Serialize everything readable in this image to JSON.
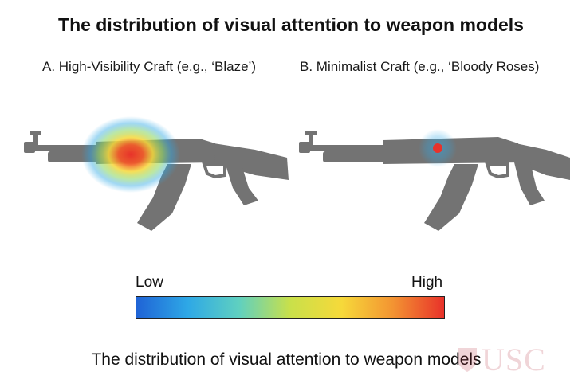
{
  "title": "The distribution of visual attention to weapon models",
  "panels": [
    {
      "label": "A. High-Visibility Craft (e.g., ‘Blaze’)",
      "attention": "high-visibility diffuse hotspot over receiver"
    },
    {
      "label": "B. Minimalist Craft (e.g., ‘Bloody Roses)",
      "attention": "small concentrated point over receiver"
    }
  ],
  "scale": {
    "low_label": "Low",
    "high_label": "High",
    "colors": [
      "#1f63d6",
      "#2ea8e6",
      "#5fd0c0",
      "#c9e04a",
      "#f6d93a",
      "#f39432",
      "#e8322a"
    ]
  },
  "caption": "The distribution of visual attention to weapon models",
  "watermark": "USC",
  "colors": {
    "gun": "#737373",
    "heat_core": "#e8322a",
    "heat_mid": "#f6d93a",
    "heat_outer": "#2ea8e6"
  }
}
